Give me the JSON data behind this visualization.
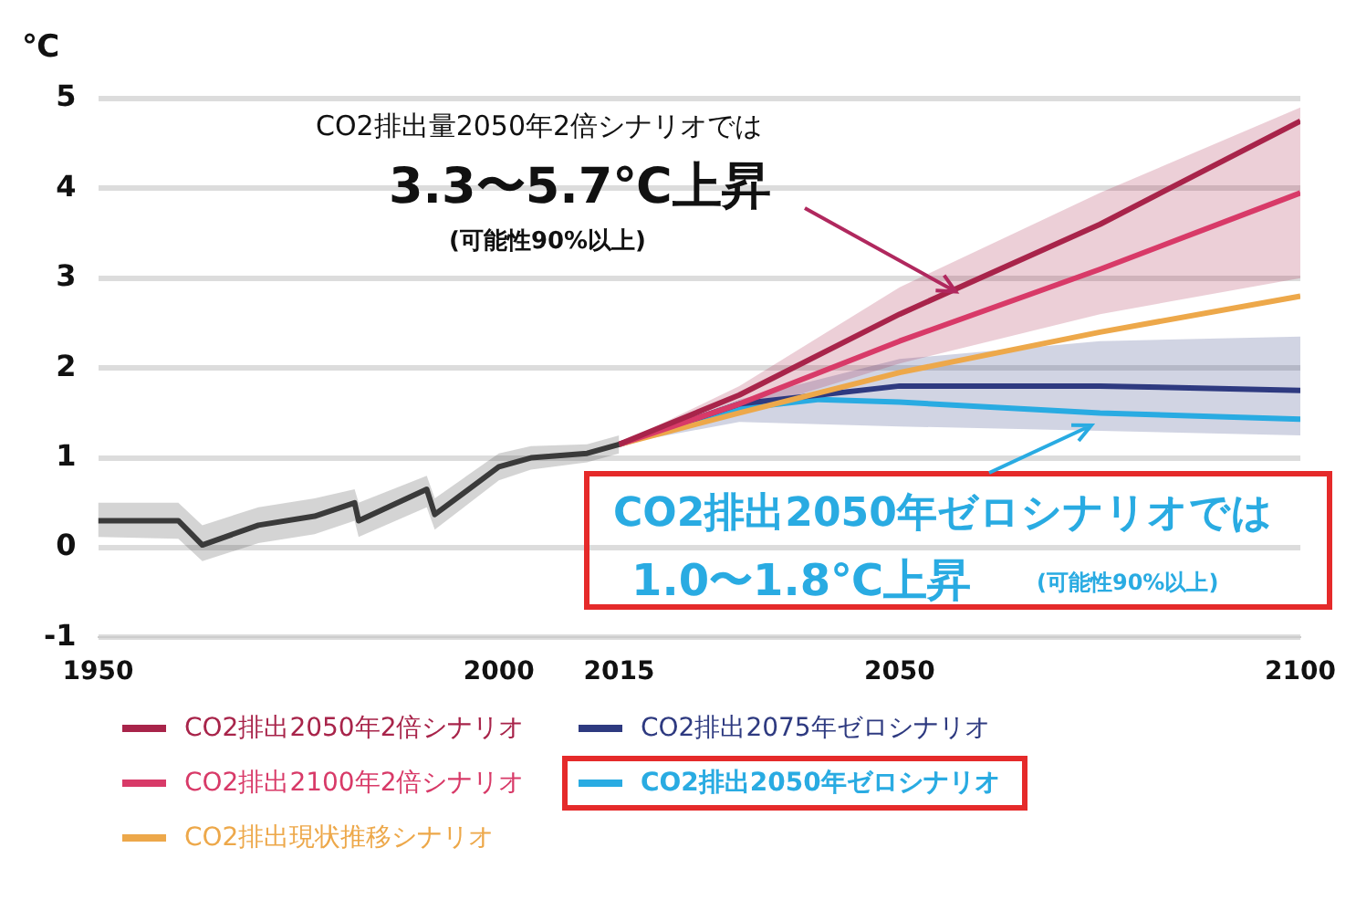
{
  "chart_data": {
    "type": "line",
    "ylabel": "℃",
    "xlim": [
      1950,
      2100
    ],
    "xticks": [
      1950,
      2000,
      2015,
      2050,
      2100
    ],
    "ylim": [
      -1,
      5
    ],
    "yticks": [
      -1,
      0,
      1,
      2,
      3,
      4,
      5
    ],
    "grid": "y",
    "legend": "bottom",
    "marker": "none",
    "line_style": "solid",
    "series": [
      {
        "color": "#3a3a3a",
        "x": [
          1950,
          1960,
          1963,
          1970,
          1977,
          1982,
          1982.5,
          1991,
          1992,
          2000,
          2004,
          2011,
          2015
        ],
        "values": [
          0.3,
          0.3,
          0.03,
          0.25,
          0.35,
          0.5,
          0.3,
          0.65,
          0.37,
          0.9,
          1.0,
          1.05,
          1.15
        ],
        "lower": [
          0.12,
          0.1,
          -0.15,
          0.05,
          0.15,
          0.3,
          0.12,
          0.45,
          0.2,
          0.75,
          0.87,
          0.95,
          1.05
        ],
        "upper": [
          0.5,
          0.5,
          0.25,
          0.45,
          0.55,
          0.65,
          0.5,
          0.8,
          0.55,
          1.05,
          1.13,
          1.15,
          1.25
        ]
      },
      {
        "name": "CO2排出2050年2倍シナリオ",
        "color": "#a8244a",
        "x": [
          2015,
          2030,
          2050,
          2075,
          2100
        ],
        "values": [
          1.15,
          1.7,
          2.6,
          3.6,
          4.75
        ],
        "lower": [
          1.15,
          1.5,
          2.05,
          2.6,
          3.0
        ],
        "upper": [
          1.15,
          1.8,
          2.9,
          3.95,
          4.9
        ]
      },
      {
        "name": "CO2排出2100年2倍シナリオ",
        "color": "#d83a68",
        "x": [
          2015,
          2030,
          2050,
          2075,
          2100
        ],
        "values": [
          1.15,
          1.6,
          2.3,
          3.1,
          3.95
        ]
      },
      {
        "name": "CO2排出現状推移シナリオ",
        "color": "#eda84a",
        "x": [
          2015,
          2030,
          2050,
          2075,
          2100
        ],
        "values": [
          1.15,
          1.5,
          1.95,
          2.4,
          2.8
        ]
      },
      {
        "name": "CO2排出2075年ゼロシナリオ",
        "color": "#2e3a80",
        "x": [
          2015,
          2030,
          2050,
          2075,
          2100
        ],
        "values": [
          1.15,
          1.6,
          1.8,
          1.8,
          1.75
        ],
        "lower": [
          1.15,
          1.4,
          1.35,
          1.3,
          1.25
        ],
        "upper": [
          1.15,
          1.65,
          2.1,
          2.3,
          2.35
        ]
      },
      {
        "name": "CO2排出2050年ゼロシナリオ",
        "color": "#29abe2",
        "x": [
          2015,
          2030,
          2040,
          2050,
          2075,
          2100
        ],
        "values": [
          1.15,
          1.55,
          1.65,
          1.62,
          1.5,
          1.43
        ]
      }
    ],
    "annotations": [
      "CO2排出量2050年2倍シナリオでは",
      {
        "text": "3.3〜5.7℃上昇",
        "x": 2057,
        "y": 2.85
      },
      "(可能性90%以上)",
      {
        "text": "CO2排出2050年ゼロシナリオでは",
        "x": 2074,
        "y": 1.37
      },
      "1.0〜1.8℃上昇",
      "(可能性90%以上)"
    ]
  }
}
